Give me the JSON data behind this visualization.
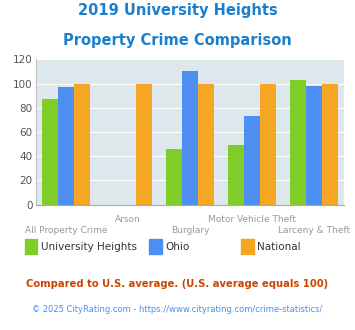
{
  "title_line1": "2019 University Heights",
  "title_line2": "Property Crime Comparison",
  "categories": [
    "All Property Crime",
    "Arson",
    "Burglary",
    "Motor Vehicle Theft",
    "Larceny & Theft"
  ],
  "series": {
    "University Heights": [
      87,
      null,
      46,
      49,
      103
    ],
    "Ohio": [
      97,
      null,
      110,
      73,
      98
    ],
    "National": [
      100,
      100,
      100,
      100,
      100
    ]
  },
  "colors": {
    "University Heights": "#80cc28",
    "Ohio": "#4d8ef0",
    "National": "#f5a623"
  },
  "ylim": [
    0,
    120
  ],
  "yticks": [
    0,
    20,
    40,
    60,
    80,
    100,
    120
  ],
  "xlabel_color": "#999999",
  "title_color": "#1a7fcc",
  "background_color": "#dde8ec",
  "footnote1": "Compared to U.S. average. (U.S. average equals 100)",
  "footnote2": "© 2025 CityRating.com - https://www.cityrating.com/crime-statistics/",
  "footnote1_color": "#cc4400",
  "footnote2_color": "#4d8ef0",
  "bar_width": 0.22,
  "group_positions": [
    0,
    0.85,
    1.7,
    2.55,
    3.4
  ]
}
